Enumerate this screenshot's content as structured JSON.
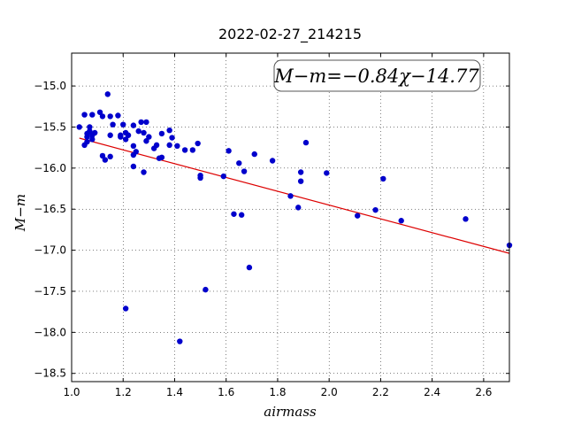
{
  "chart_data": {
    "type": "scatter",
    "title": "2022-02-27_214215",
    "xlabel": "airmass",
    "ylabel": "M−m",
    "xlim": [
      1.0,
      2.7
    ],
    "ylim": [
      -18.6,
      -14.6
    ],
    "y_inverted": true,
    "grid": true,
    "x_ticks": [
      "1.0",
      "1.2",
      "1.4",
      "1.6",
      "1.8",
      "2.0",
      "2.2",
      "2.4",
      "2.6"
    ],
    "y_ticks": [
      "−15.0",
      "−15.5",
      "−16.0",
      "−16.5",
      "−17.0",
      "−17.5",
      "−18.0",
      "−18.5"
    ],
    "annotation": "M−m=−0.84χ−14.77",
    "fit": {
      "slope": -0.84,
      "intercept": -14.77,
      "x_range": [
        1.03,
        2.7
      ],
      "color": "#dd0000"
    },
    "point_color": "#0000cc",
    "points": [
      [
        1.03,
        -15.5
      ],
      [
        1.05,
        -15.35
      ],
      [
        1.05,
        -15.72
      ],
      [
        1.06,
        -15.68
      ],
      [
        1.06,
        -15.58
      ],
      [
        1.07,
        -15.5
      ],
      [
        1.07,
        -15.55
      ],
      [
        1.08,
        -15.6
      ],
      [
        1.08,
        -15.65
      ],
      [
        1.08,
        -15.35
      ],
      [
        1.09,
        -15.57
      ],
      [
        1.06,
        -15.62
      ],
      [
        1.11,
        -15.32
      ],
      [
        1.12,
        -15.37
      ],
      [
        1.12,
        -15.85
      ],
      [
        1.13,
        -15.9
      ],
      [
        1.14,
        -15.1
      ],
      [
        1.15,
        -15.37
      ],
      [
        1.15,
        -15.86
      ],
      [
        1.15,
        -15.6
      ],
      [
        1.16,
        -15.47
      ],
      [
        1.18,
        -15.36
      ],
      [
        1.19,
        -15.62
      ],
      [
        1.19,
        -15.6
      ],
      [
        1.2,
        -15.47
      ],
      [
        1.21,
        -15.57
      ],
      [
        1.21,
        -15.65
      ],
      [
        1.22,
        -15.6
      ],
      [
        1.21,
        -17.71
      ],
      [
        1.24,
        -15.48
      ],
      [
        1.24,
        -15.73
      ],
      [
        1.24,
        -15.84
      ],
      [
        1.24,
        -15.98
      ],
      [
        1.25,
        -15.8
      ],
      [
        1.26,
        -15.55
      ],
      [
        1.27,
        -15.44
      ],
      [
        1.28,
        -15.57
      ],
      [
        1.28,
        -16.05
      ],
      [
        1.29,
        -15.44
      ],
      [
        1.29,
        -15.67
      ],
      [
        1.3,
        -15.62
      ],
      [
        1.32,
        -15.76
      ],
      [
        1.33,
        -15.72
      ],
      [
        1.34,
        -15.88
      ],
      [
        1.35,
        -15.58
      ],
      [
        1.35,
        -15.87
      ],
      [
        1.38,
        -15.54
      ],
      [
        1.38,
        -15.72
      ],
      [
        1.39,
        -15.63
      ],
      [
        1.41,
        -15.73
      ],
      [
        1.42,
        -18.11
      ],
      [
        1.44,
        -15.78
      ],
      [
        1.47,
        -15.78
      ],
      [
        1.49,
        -15.7
      ],
      [
        1.5,
        -16.09
      ],
      [
        1.5,
        -16.12
      ],
      [
        1.52,
        -17.48
      ],
      [
        1.59,
        -16.1
      ],
      [
        1.61,
        -15.79
      ],
      [
        1.63,
        -16.56
      ],
      [
        1.65,
        -15.94
      ],
      [
        1.66,
        -16.57
      ],
      [
        1.67,
        -16.04
      ],
      [
        1.69,
        -17.21
      ],
      [
        1.71,
        -15.83
      ],
      [
        1.78,
        -15.91
      ],
      [
        1.85,
        -16.34
      ],
      [
        1.88,
        -16.48
      ],
      [
        1.89,
        -16.16
      ],
      [
        1.89,
        -16.05
      ],
      [
        1.91,
        -15.69
      ],
      [
        1.99,
        -16.06
      ],
      [
        2.11,
        -16.58
      ],
      [
        2.18,
        -16.51
      ],
      [
        2.21,
        -16.13
      ],
      [
        2.28,
        -16.64
      ],
      [
        2.53,
        -16.62
      ],
      [
        2.7,
        -16.94
      ]
    ]
  }
}
